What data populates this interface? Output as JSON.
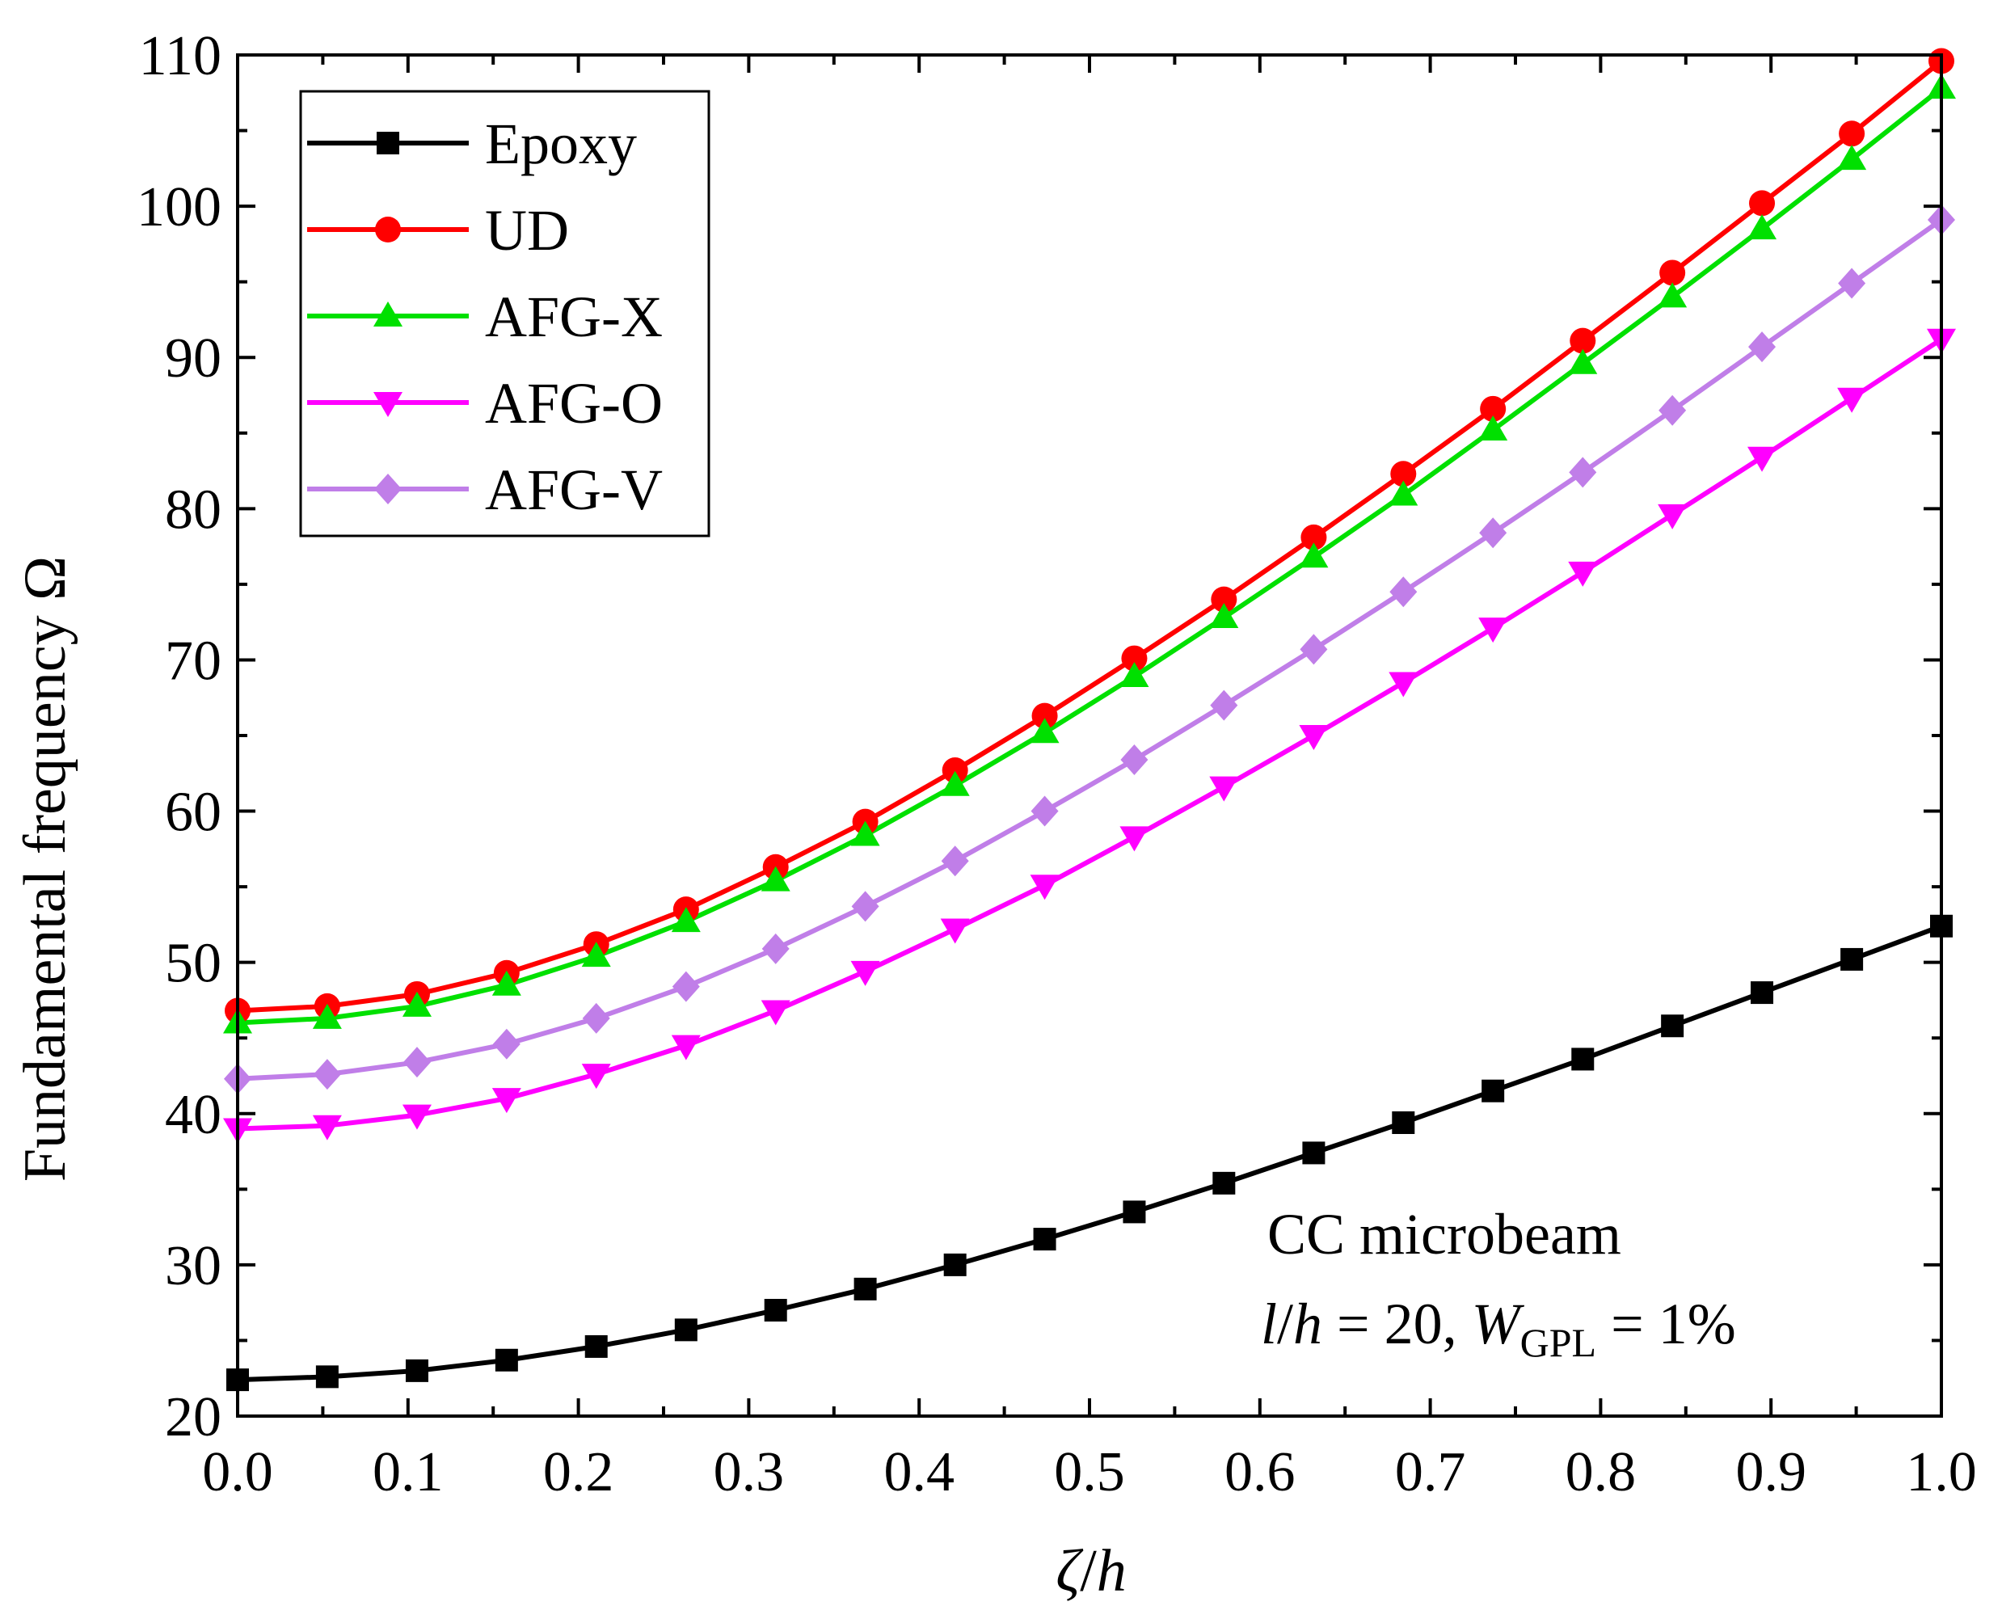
{
  "chart_data": {
    "type": "line",
    "title": "",
    "xlabel": {
      "var": "ζ",
      "sep": "/",
      "denom": "h"
    },
    "ylabel": {
      "text": "Fundamental frequency",
      "symbol": "Ω"
    },
    "xlim": [
      0.0,
      1.0
    ],
    "ylim": [
      20,
      110
    ],
    "x_ticks": [
      "0.0",
      "0.1",
      "0.2",
      "0.3",
      "0.4",
      "0.5",
      "0.6",
      "0.7",
      "0.8",
      "0.9",
      "1.0"
    ],
    "y_ticks": [
      "20",
      "30",
      "40",
      "50",
      "60",
      "70",
      "80",
      "90",
      "100",
      "110"
    ],
    "grid": false,
    "legend_position": "top-left",
    "x": [
      0.0,
      0.0526,
      0.1053,
      0.1579,
      0.2105,
      0.2632,
      0.3158,
      0.3684,
      0.4211,
      0.4737,
      0.5263,
      0.5789,
      0.6316,
      0.6842,
      0.7368,
      0.7895,
      0.8421,
      0.8947,
      0.9474,
      1.0
    ],
    "series": [
      {
        "name": "Epoxy",
        "color": "#000000",
        "marker": "square",
        "values": [
          22.4,
          22.6,
          23.0,
          23.7,
          24.6,
          25.7,
          27.0,
          28.4,
          30.0,
          31.7,
          33.5,
          35.4,
          37.4,
          39.4,
          41.5,
          43.6,
          45.8,
          48.0,
          50.2,
          52.4
        ]
      },
      {
        "name": "UD",
        "color": "#ff0000",
        "marker": "circle",
        "values": [
          46.8,
          47.1,
          47.9,
          49.3,
          51.2,
          53.5,
          56.3,
          59.3,
          62.7,
          66.3,
          70.1,
          74.0,
          78.1,
          82.3,
          86.6,
          91.1,
          95.6,
          100.2,
          104.8,
          109.6
        ]
      },
      {
        "name": "AFG-X",
        "color": "#00e000",
        "marker": "triangle-up",
        "values": [
          46.0,
          46.3,
          47.1,
          48.5,
          50.4,
          52.7,
          55.4,
          58.4,
          61.7,
          65.2,
          68.9,
          72.8,
          76.8,
          80.9,
          85.2,
          89.6,
          94.0,
          98.5,
          103.1,
          107.8
        ]
      },
      {
        "name": "AFG-O",
        "color": "#ff00ff",
        "marker": "triangle-down",
        "values": [
          39.0,
          39.2,
          39.9,
          41.0,
          42.6,
          44.5,
          46.8,
          49.4,
          52.2,
          55.1,
          58.3,
          61.6,
          65.0,
          68.5,
          72.1,
          75.8,
          79.6,
          83.4,
          87.3,
          91.2
        ]
      },
      {
        "name": "AFG-V",
        "color": "#c07ee8",
        "marker": "diamond",
        "values": [
          42.3,
          42.6,
          43.4,
          44.6,
          46.3,
          48.4,
          50.9,
          53.7,
          56.7,
          60.0,
          63.4,
          67.0,
          70.7,
          74.5,
          78.4,
          82.4,
          86.5,
          90.7,
          94.9,
          99.1
        ]
      }
    ],
    "annotation": {
      "line1": "CC microbeam",
      "line2_var1": "l",
      "line2_var2": "h",
      "line2_eq": " = 20, ",
      "line2_var3": "W",
      "line2_sub": "GPL",
      "line2_end": " = 1%"
    }
  }
}
